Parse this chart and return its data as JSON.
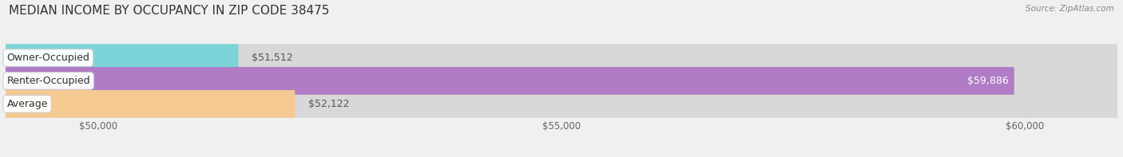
{
  "title": "MEDIAN INCOME BY OCCUPANCY IN ZIP CODE 38475",
  "source": "Source: ZipAtlas.com",
  "categories": [
    "Owner-Occupied",
    "Renter-Occupied",
    "Average"
  ],
  "values": [
    51512,
    59886,
    52122
  ],
  "bar_colors": [
    "#7dd4d8",
    "#b07cc6",
    "#f5c992"
  ],
  "x_min": 49000,
  "x_max": 61000,
  "x_ticks": [
    50000,
    55000,
    60000
  ],
  "x_tick_labels": [
    "$50,000",
    "$55,000",
    "$60,000"
  ],
  "value_labels": [
    "$51,512",
    "$59,886",
    "$52,122"
  ],
  "bar_height": 0.6,
  "background_color": "#f0f0f0",
  "title_fontsize": 11,
  "label_fontsize": 9,
  "value_fontsize": 9,
  "tick_fontsize": 8.5
}
